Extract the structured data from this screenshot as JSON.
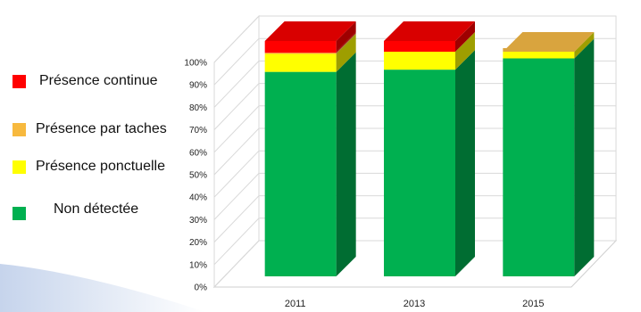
{
  "chart_data": {
    "type": "bar",
    "stacked": true,
    "three_d": true,
    "categories": [
      "2011",
      "2013",
      "2015"
    ],
    "series": [
      {
        "name": "Non détectée",
        "color": "#00b050",
        "values": [
          91,
          92,
          97
        ]
      },
      {
        "name": "Présence ponctuelle",
        "color": "#ffff00",
        "values": [
          8,
          8,
          3
        ]
      },
      {
        "name": "Présence par taches",
        "color": "#f7b93e",
        "values": [
          0.5,
          0,
          0
        ]
      },
      {
        "name": "Présence continue",
        "color": "#ff0000",
        "values": [
          0.5,
          0,
          0
        ]
      }
    ],
    "note_2015_top_segment_color": "#d9a43e",
    "y_ticks": [
      "0%",
      "10%",
      "20%",
      "30%",
      "40%",
      "50%",
      "60%",
      "70%",
      "80%",
      "90%",
      "100%"
    ],
    "ylim": [
      0,
      100
    ],
    "grid": true,
    "legend": {
      "position": "left",
      "order": [
        "Présence continue",
        "Présence par taches",
        "Présence ponctuelle",
        "Non détectée"
      ]
    }
  }
}
